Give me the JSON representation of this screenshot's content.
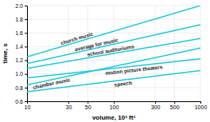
{
  "chart_data": {
    "type": "line",
    "x": [
      10,
      1000
    ],
    "xlabel": "volume, 10³ ft³",
    "ylabel": "time, s",
    "log": "x",
    "grid": true,
    "color": "#1cc8d8",
    "xlim": [
      10,
      1000
    ],
    "xticks": [
      10,
      30,
      50,
      100,
      300,
      500,
      1000
    ],
    "ylim": [
      0.6,
      2.0
    ],
    "yticks": [
      0.6,
      0.8,
      {
        "value": 1.0,
        "label": "1.0"
      },
      1.2,
      1.4,
      1.6,
      1.8,
      {
        "value": 2.0,
        "label": "2.0"
      }
    ],
    "series": [
      {
        "name": "church music",
        "values": [
          1.25,
          2.0
        ]
      },
      {
        "name": "average for music",
        "values": [
          1.15,
          1.72
        ]
      },
      {
        "name": "school auditoriums",
        "values": [
          1.08,
          1.52
        ]
      },
      {
        "name": "motion picture theaters",
        "values": [
          0.94,
          1.22
        ]
      },
      {
        "name": "chamber music",
        "values": [
          0.84,
          1.38
        ]
      },
      {
        "name": "speech",
        "values": [
          0.74,
          1.05
        ]
      }
    ]
  }
}
